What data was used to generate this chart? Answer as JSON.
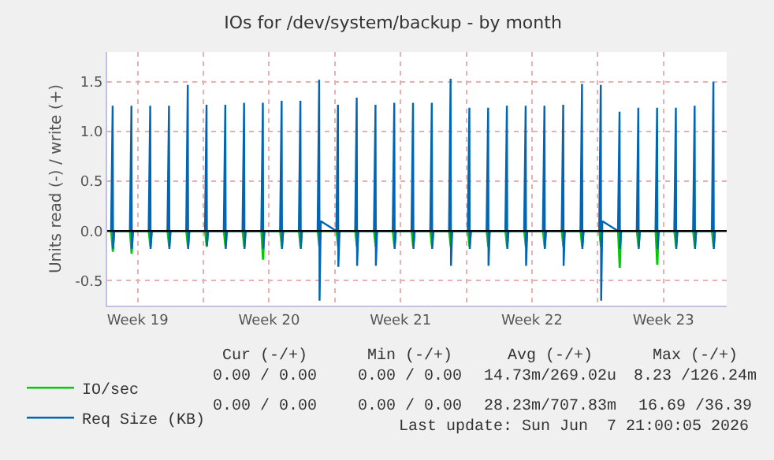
{
  "chart_data": {
    "type": "line",
    "title": "IOs for /dev/system/backup - by month",
    "ylabel": "Units read (-) / write (+)",
    "x": [
      "2026-05-06T02:00",
      "2026-05-06T04:00",
      "2026-05-06T04:30",
      "2026-05-06T06:00",
      "2026-05-07T02:00",
      "2026-05-07T04:00",
      "2026-05-07T04:30",
      "2026-05-07T06:00",
      "2026-05-08T02:00",
      "2026-05-08T04:00",
      "2026-05-08T04:30",
      "2026-05-08T06:00",
      "2026-05-09T02:00",
      "2026-05-09T04:00",
      "2026-05-09T04:30",
      "2026-05-09T06:00",
      "2026-05-10T02:00",
      "2026-05-10T04:00",
      "2026-05-10T04:30",
      "2026-05-10T06:00",
      "2026-05-11T02:00",
      "2026-05-11T04:00",
      "2026-05-11T04:30",
      "2026-05-11T06:00",
      "2026-05-12T02:00",
      "2026-05-12T04:00",
      "2026-05-12T04:30",
      "2026-05-12T06:00",
      "2026-05-13T02:00",
      "2026-05-13T04:00",
      "2026-05-13T04:30",
      "2026-05-13T06:00",
      "2026-05-14T02:00",
      "2026-05-14T04:00",
      "2026-05-14T04:30",
      "2026-05-14T06:00",
      "2026-05-15T02:00",
      "2026-05-15T04:00",
      "2026-05-15T04:30",
      "2026-05-15T06:00",
      "2026-05-16T02:00",
      "2026-05-16T04:00",
      "2026-05-16T04:30",
      "2026-05-16T06:00",
      "2026-05-17T02:00",
      "2026-05-17T04:00",
      "2026-05-17T04:30",
      "2026-05-17T06:00",
      "2026-05-18T02:00",
      "2026-05-18T04:00",
      "2026-05-18T04:30",
      "2026-05-18T06:00",
      "2026-05-19T02:00",
      "2026-05-19T04:00",
      "2026-05-19T04:30",
      "2026-05-19T06:00",
      "2026-05-20T02:00",
      "2026-05-20T04:00",
      "2026-05-20T04:30",
      "2026-05-20T06:00",
      "2026-05-21T02:00",
      "2026-05-21T04:00",
      "2026-05-21T04:30",
      "2026-05-21T06:00",
      "2026-05-22T02:00",
      "2026-05-22T04:00",
      "2026-05-22T04:30",
      "2026-05-22T06:00",
      "2026-05-23T02:00",
      "2026-05-23T04:00",
      "2026-05-23T04:30",
      "2026-05-23T06:00",
      "2026-05-24T02:00",
      "2026-05-24T04:00",
      "2026-05-24T04:30",
      "2026-05-24T06:00",
      "2026-05-25T02:00",
      "2026-05-25T04:00",
      "2026-05-25T04:30",
      "2026-05-25T06:00",
      "2026-05-26T02:00",
      "2026-05-26T04:00",
      "2026-05-26T04:30",
      "2026-05-26T06:00",
      "2026-05-27T02:00",
      "2026-05-27T04:00",
      "2026-05-27T04:30",
      "2026-05-27T06:00",
      "2026-05-28T02:00",
      "2026-05-28T04:00",
      "2026-05-28T04:30",
      "2026-05-28T06:00",
      "2026-05-29T02:00",
      "2026-05-29T04:00",
      "2026-05-29T04:30",
      "2026-05-29T06:00",
      "2026-05-30T02:00",
      "2026-05-30T04:00",
      "2026-05-30T04:30",
      "2026-05-30T06:00",
      "2026-05-31T02:00",
      "2026-05-31T04:00",
      "2026-05-31T04:30",
      "2026-05-31T06:00",
      "2026-06-01T02:00",
      "2026-06-01T04:00",
      "2026-06-01T04:30",
      "2026-06-01T06:00",
      "2026-06-02T02:00",
      "2026-06-02T04:00",
      "2026-06-02T04:30",
      "2026-06-02T06:00",
      "2026-06-03T02:00",
      "2026-06-03T04:00",
      "2026-06-03T04:30",
      "2026-06-03T06:00",
      "2026-06-04T02:00",
      "2026-06-04T04:00",
      "2026-06-04T04:30",
      "2026-06-04T06:00",
      "2026-06-05T02:00",
      "2026-06-05T04:00",
      "2026-06-05T04:30",
      "2026-06-05T06:00",
      "2026-06-06T02:00",
      "2026-06-06T04:00",
      "2026-06-06T04:30",
      "2026-06-06T06:00",
      "2026-06-07T02:00",
      "2026-06-07T04:00",
      "2026-06-07T04:30",
      "2026-06-07T06:00"
    ],
    "series": [
      {
        "name": "IO/sec",
        "color": "#00cc00",
        "values": [
          0,
          -0.2,
          -0.2,
          0,
          0,
          -0.22,
          -0.22,
          0,
          0,
          -0.15,
          -0.15,
          0,
          0,
          -0.15,
          -0.15,
          0,
          0,
          -0.15,
          -0.15,
          0,
          0,
          -0.15,
          -0.15,
          0,
          0,
          -0.15,
          -0.15,
          0,
          0,
          -0.15,
          -0.15,
          0,
          0,
          -0.28,
          -0.28,
          0,
          0,
          -0.15,
          -0.15,
          0,
          0,
          -0.15,
          -0.15,
          0,
          0,
          -0.15,
          -0.15,
          0,
          0,
          -0.15,
          -0.15,
          0,
          0,
          -0.15,
          -0.15,
          0,
          0,
          -0.15,
          -0.15,
          0,
          0,
          -0.15,
          -0.15,
          0,
          0,
          -0.15,
          -0.15,
          0,
          0,
          -0.15,
          -0.15,
          0,
          0,
          -0.15,
          -0.15,
          0,
          0,
          -0.15,
          -0.15,
          0,
          0,
          -0.15,
          -0.15,
          0,
          0,
          -0.15,
          -0.15,
          0,
          0,
          -0.15,
          -0.15,
          0,
          0,
          -0.15,
          -0.15,
          0,
          0,
          -0.15,
          -0.15,
          0,
          0,
          -0.15,
          -0.15,
          0,
          0,
          -0.15,
          -0.15,
          0,
          0,
          -0.36,
          -0.36,
          0,
          0,
          -0.15,
          -0.15,
          0,
          0,
          -0.33,
          -0.33,
          0,
          0,
          -0.15,
          -0.15,
          0,
          0,
          -0.15,
          -0.15,
          0,
          0,
          -0.15,
          -0.15,
          0
        ]
      },
      {
        "name": "Req Size (KB)",
        "color": "#0066b3",
        "values": [
          0,
          1.26,
          -0.18,
          0,
          0,
          1.26,
          -0.18,
          0,
          0,
          1.26,
          -0.18,
          0,
          0,
          1.26,
          -0.18,
          0,
          0,
          1.47,
          -0.18,
          0,
          0,
          1.27,
          -0.15,
          0,
          0,
          1.27,
          -0.18,
          0,
          0,
          1.29,
          -0.18,
          0,
          0,
          1.29,
          -0.18,
          0,
          0,
          1.31,
          -0.18,
          0,
          0,
          1.31,
          -0.18,
          0,
          0,
          1.52,
          -0.7,
          0.1,
          0,
          1.27,
          -0.36,
          0,
          0,
          1.34,
          -0.35,
          0,
          0,
          1.27,
          -0.35,
          0,
          0,
          1.29,
          -0.18,
          0,
          0,
          1.29,
          -0.18,
          0,
          0,
          1.29,
          -0.18,
          0,
          0,
          1.53,
          -0.35,
          0,
          0,
          1.24,
          -0.18,
          0,
          0,
          1.24,
          -0.35,
          0,
          0,
          1.26,
          -0.18,
          0,
          0,
          1.26,
          -0.35,
          0,
          0,
          1.26,
          -0.18,
          0,
          0,
          1.27,
          -0.35,
          0,
          0,
          1.48,
          -0.18,
          0,
          0,
          1.47,
          -0.7,
          0.1,
          0,
          1.2,
          -0.18,
          0,
          0,
          1.24,
          -0.18,
          0,
          0,
          1.24,
          -0.18,
          0,
          0,
          1.24,
          -0.18,
          0,
          0,
          1.26,
          -0.18,
          0,
          0,
          1.5,
          -0.18,
          0
        ]
      }
    ],
    "xlim": [
      "2026-05-05T21:00",
      "2026-06-07T21:00"
    ],
    "xticks": [
      {
        "value": "2026-05-07T12:00",
        "label": "Week 19"
      },
      {
        "value": "2026-05-11",
        "label": null
      },
      {
        "value": "2026-05-14T12:00",
        "label": "Week 20"
      },
      {
        "value": "2026-05-18",
        "label": null
      },
      {
        "value": "2026-05-21T12:00",
        "label": "Week 21"
      },
      {
        "value": "2026-05-25",
        "label": null
      },
      {
        "value": "2026-05-28T12:00",
        "label": "Week 22"
      },
      {
        "value": "2026-06-01",
        "label": null
      },
      {
        "value": "2026-06-04T12:00",
        "label": "Week 23"
      }
    ],
    "ylim": [
      -0.75,
      1.8
    ],
    "yticks": [
      -0.5,
      {
        "value": 0,
        "label": "0.0"
      },
      0.5,
      {
        "value": 1,
        "label": "1.0"
      },
      1.5
    ],
    "ref_lines": [
      {
        "axis": "y",
        "value": 0,
        "color": "#000000"
      }
    ],
    "grid": true,
    "legend": "bottom",
    "line_style": "solid",
    "marker": "none",
    "annotations": [
      "Cur (-/+)",
      "Min (-/+)",
      "Avg (-/+)",
      "Max (-/+)",
      "0.00 / 0.00",
      "0.00 / 0.00",
      "14.73m/269.02u",
      "8.23 /126.24m",
      "0.00 / 0.00",
      "0.00 / 0.00",
      "28.23m/707.83m",
      "16.69 /36.39",
      "Last update: Sun Jun  7 21:00:05 2026"
    ]
  }
}
